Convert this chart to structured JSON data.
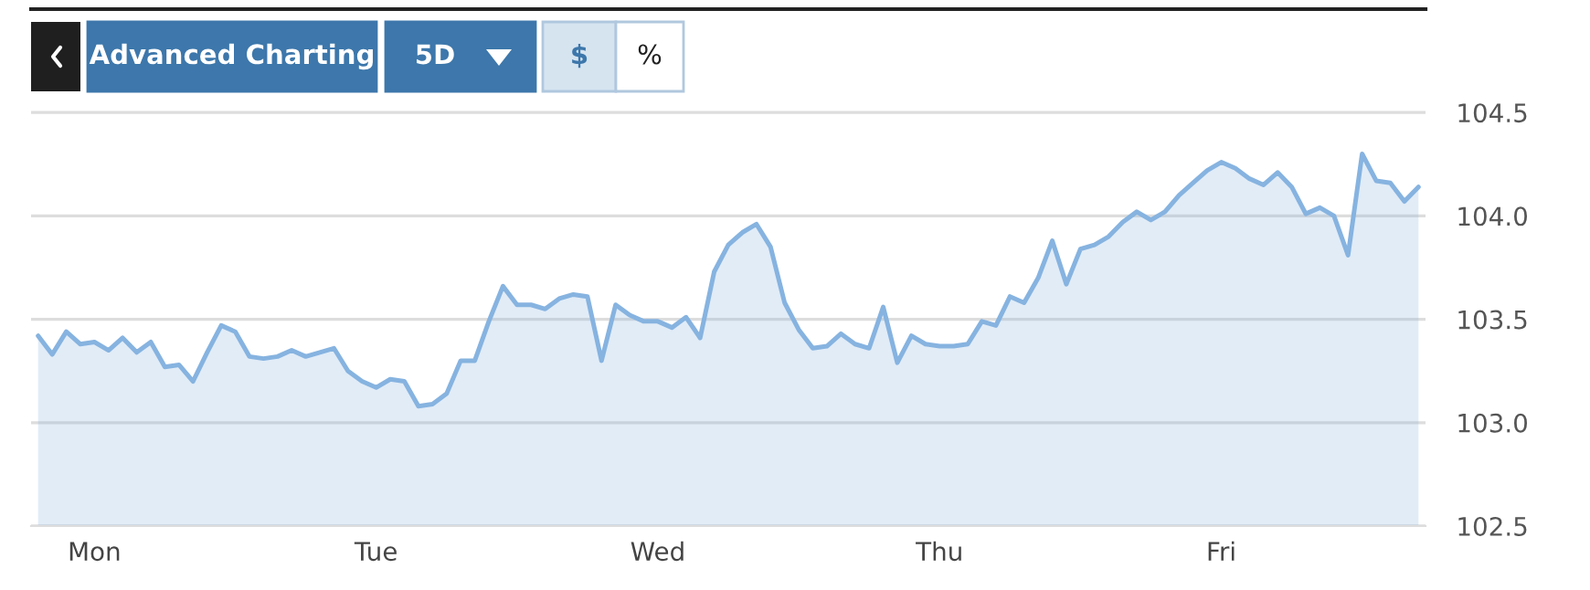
{
  "chart_data": {
    "type": "area",
    "categories": [
      null,
      null,
      null,
      null,
      "Mon",
      null,
      null,
      null,
      null,
      null,
      null,
      null,
      null,
      null,
      null,
      null,
      null,
      null,
      null,
      null,
      null,
      null,
      null,
      null,
      "Tue",
      null,
      null,
      null,
      null,
      null,
      null,
      null,
      null,
      null,
      null,
      null,
      null,
      null,
      null,
      null,
      null,
      null,
      null,
      null,
      "Wed",
      null,
      null,
      null,
      null,
      null,
      null,
      null,
      null,
      null,
      null,
      null,
      null,
      null,
      null,
      null,
      null,
      null,
      null,
      null,
      "Thu",
      null,
      null,
      null,
      null,
      null,
      null,
      null,
      null,
      null,
      null,
      null,
      null,
      null,
      null,
      null,
      null,
      null,
      null,
      null,
      "Fri",
      null,
      null,
      null,
      null,
      null,
      null,
      null,
      null,
      null,
      null,
      null,
      null,
      null,
      null
    ],
    "series": [
      {
        "color": "#86b3e0",
        "values": [
          103.42,
          103.33,
          103.44,
          103.38,
          103.39,
          103.35,
          103.41,
          103.34,
          103.39,
          103.27,
          103.28,
          103.2,
          103.34,
          103.47,
          103.44,
          103.32,
          103.31,
          103.32,
          103.35,
          103.32,
          103.34,
          103.36,
          103.25,
          103.2,
          103.17,
          103.21,
          103.2,
          103.08,
          103.09,
          103.14,
          103.3,
          103.3,
          103.49,
          103.66,
          103.57,
          103.57,
          103.55,
          103.6,
          103.62,
          103.61,
          103.3,
          103.57,
          103.52,
          103.49,
          103.49,
          103.46,
          103.51,
          103.41,
          103.73,
          103.86,
          103.92,
          103.96,
          103.85,
          103.58,
          103.45,
          103.36,
          103.37,
          103.43,
          103.38,
          103.36,
          103.56,
          103.29,
          103.42,
          103.38,
          103.37,
          103.37,
          103.38,
          103.49,
          103.47,
          103.61,
          103.58,
          103.7,
          103.88,
          103.67,
          103.84,
          103.86,
          103.9,
          103.97,
          104.02,
          103.98,
          104.02,
          104.1,
          104.16,
          104.22,
          104.26,
          104.23,
          104.18,
          104.15,
          104.21,
          104.14,
          104.01,
          104.04,
          104.0,
          103.81,
          104.3,
          104.17,
          104.16,
          104.07,
          104.14
        ]
      }
    ],
    "ylim": [
      102.5,
      105.0
    ],
    "yticks": [
      102.5,
      {
        "value": 103,
        "label": "103.0"
      },
      103.5,
      {
        "value": 104,
        "label": "104.0"
      },
      104.5
    ],
    "grid": "y",
    "annotations": [
      "Advanced Charting",
      "5D",
      "$",
      "%"
    ]
  }
}
